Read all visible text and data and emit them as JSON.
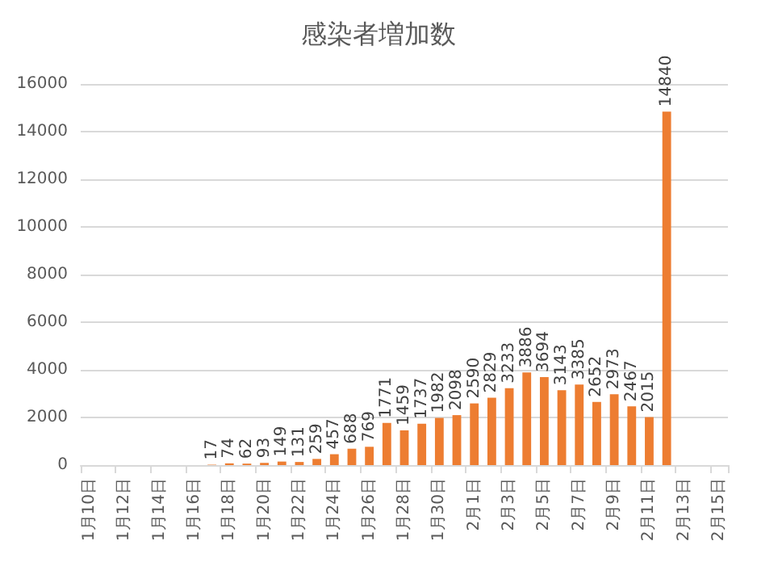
{
  "chart_data": {
    "type": "bar",
    "title": "感染者増加数",
    "categories": [
      "1月10日",
      null,
      "1月12日",
      null,
      "1月14日",
      null,
      "1月16日",
      null,
      "1月18日",
      null,
      "1月20日",
      null,
      "1月22日",
      null,
      "1月24日",
      null,
      "1月26日",
      null,
      "1月28日",
      null,
      "1月30日",
      null,
      "2月1日",
      null,
      "2月3日",
      null,
      "2月5日",
      null,
      "2月7日",
      null,
      "2月9日",
      null,
      "2月11日",
      null,
      "2月13日",
      null,
      "2月15日"
    ],
    "values": [
      null,
      null,
      null,
      null,
      null,
      null,
      null,
      17,
      74,
      62,
      93,
      149,
      131,
      259,
      457,
      688,
      769,
      1771,
      1459,
      1737,
      1982,
      2098,
      2590,
      2829,
      3233,
      3886,
      3694,
      3143,
      3385,
      2652,
      2973,
      2467,
      2015,
      14840,
      null,
      null,
      null
    ],
    "color": "#ed7d31",
    "ylim": [
      0,
      16000
    ],
    "yticks": [
      0,
      2000,
      4000,
      6000,
      8000,
      10000,
      12000,
      14000,
      16000
    ],
    "grid": "y",
    "data_labels": true
  }
}
